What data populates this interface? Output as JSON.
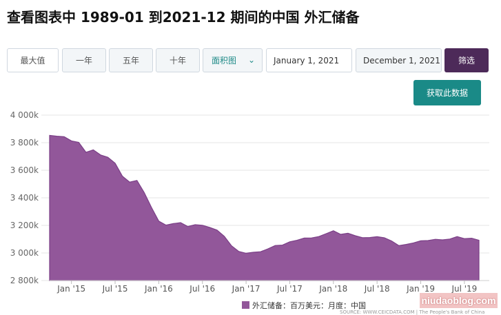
{
  "page": {
    "title": "查看图表中 1989-01 到2021-12 期间的中国 外汇储备"
  },
  "toolbar": {
    "max_label": "最大值",
    "one_year_label": "一年",
    "five_year_label": "五年",
    "ten_year_label": "十年",
    "chart_type_selected": "面积图",
    "start_date": "January 1, 2021",
    "end_date": "December 1, 2021",
    "filter_label": "筛选",
    "fetch_label": "获取此数据"
  },
  "watermark": "niudaoblog.com",
  "colors": {
    "area_fill": "#92579a",
    "area_stroke": "#7a3e86",
    "filter_button": "#4d2a59",
    "fetch_button": "#1a8a87",
    "chart_type_text": "#1e8a87"
  },
  "chart_data": {
    "type": "area",
    "title": "",
    "xlabel": "",
    "ylabel": "",
    "ylim": [
      2800,
      4000
    ],
    "y_ticks": [
      "2 800k",
      "3 000k",
      "3 200k",
      "3 400k",
      "3 600k",
      "3 800k",
      "4 000k"
    ],
    "x_ticks": [
      "Jan '15",
      "Jul '15",
      "Jan '16",
      "Jul '16",
      "Jan '17",
      "Jul '17",
      "Jan '18",
      "Jul '18",
      "Jan '19",
      "Jul '19"
    ],
    "grid": true,
    "legend_position": "bottom-center",
    "source_note": "SOURCE: WWW.CEICDATA.COM | The People's Bank of China",
    "series": [
      {
        "name": "外汇储备：百万美元：月度：中国",
        "x": [
          "2014-10",
          "2014-11",
          "2014-12",
          "2015-01",
          "2015-02",
          "2015-03",
          "2015-04",
          "2015-05",
          "2015-06",
          "2015-07",
          "2015-08",
          "2015-09",
          "2015-10",
          "2015-11",
          "2015-12",
          "2016-01",
          "2016-02",
          "2016-03",
          "2016-04",
          "2016-05",
          "2016-06",
          "2016-07",
          "2016-08",
          "2016-09",
          "2016-10",
          "2016-11",
          "2016-12",
          "2017-01",
          "2017-02",
          "2017-03",
          "2017-04",
          "2017-05",
          "2017-06",
          "2017-07",
          "2017-08",
          "2017-09",
          "2017-10",
          "2017-11",
          "2017-12",
          "2018-01",
          "2018-02",
          "2018-03",
          "2018-04",
          "2018-05",
          "2018-06",
          "2018-07",
          "2018-08",
          "2018-09",
          "2018-10",
          "2018-11",
          "2018-12",
          "2019-01",
          "2019-02",
          "2019-03",
          "2019-04",
          "2019-05",
          "2019-06",
          "2019-07",
          "2019-08",
          "2019-09"
        ],
        "values": [
          3853,
          3847,
          3843,
          3813,
          3802,
          3730,
          3748,
          3711,
          3694,
          3651,
          3557,
          3514,
          3526,
          3438,
          3330,
          3231,
          3202,
          3213,
          3220,
          3192,
          3205,
          3201,
          3185,
          3166,
          3121,
          3052,
          3011,
          2998,
          3005,
          3009,
          3030,
          3054,
          3057,
          3081,
          3092,
          3108,
          3109,
          3119,
          3140,
          3161,
          3135,
          3143,
          3125,
          3111,
          3112,
          3118,
          3110,
          3087,
          3053,
          3062,
          3073,
          3088,
          3090,
          3099,
          3095,
          3101,
          3119,
          3104,
          3107,
          3092
        ]
      }
    ]
  }
}
